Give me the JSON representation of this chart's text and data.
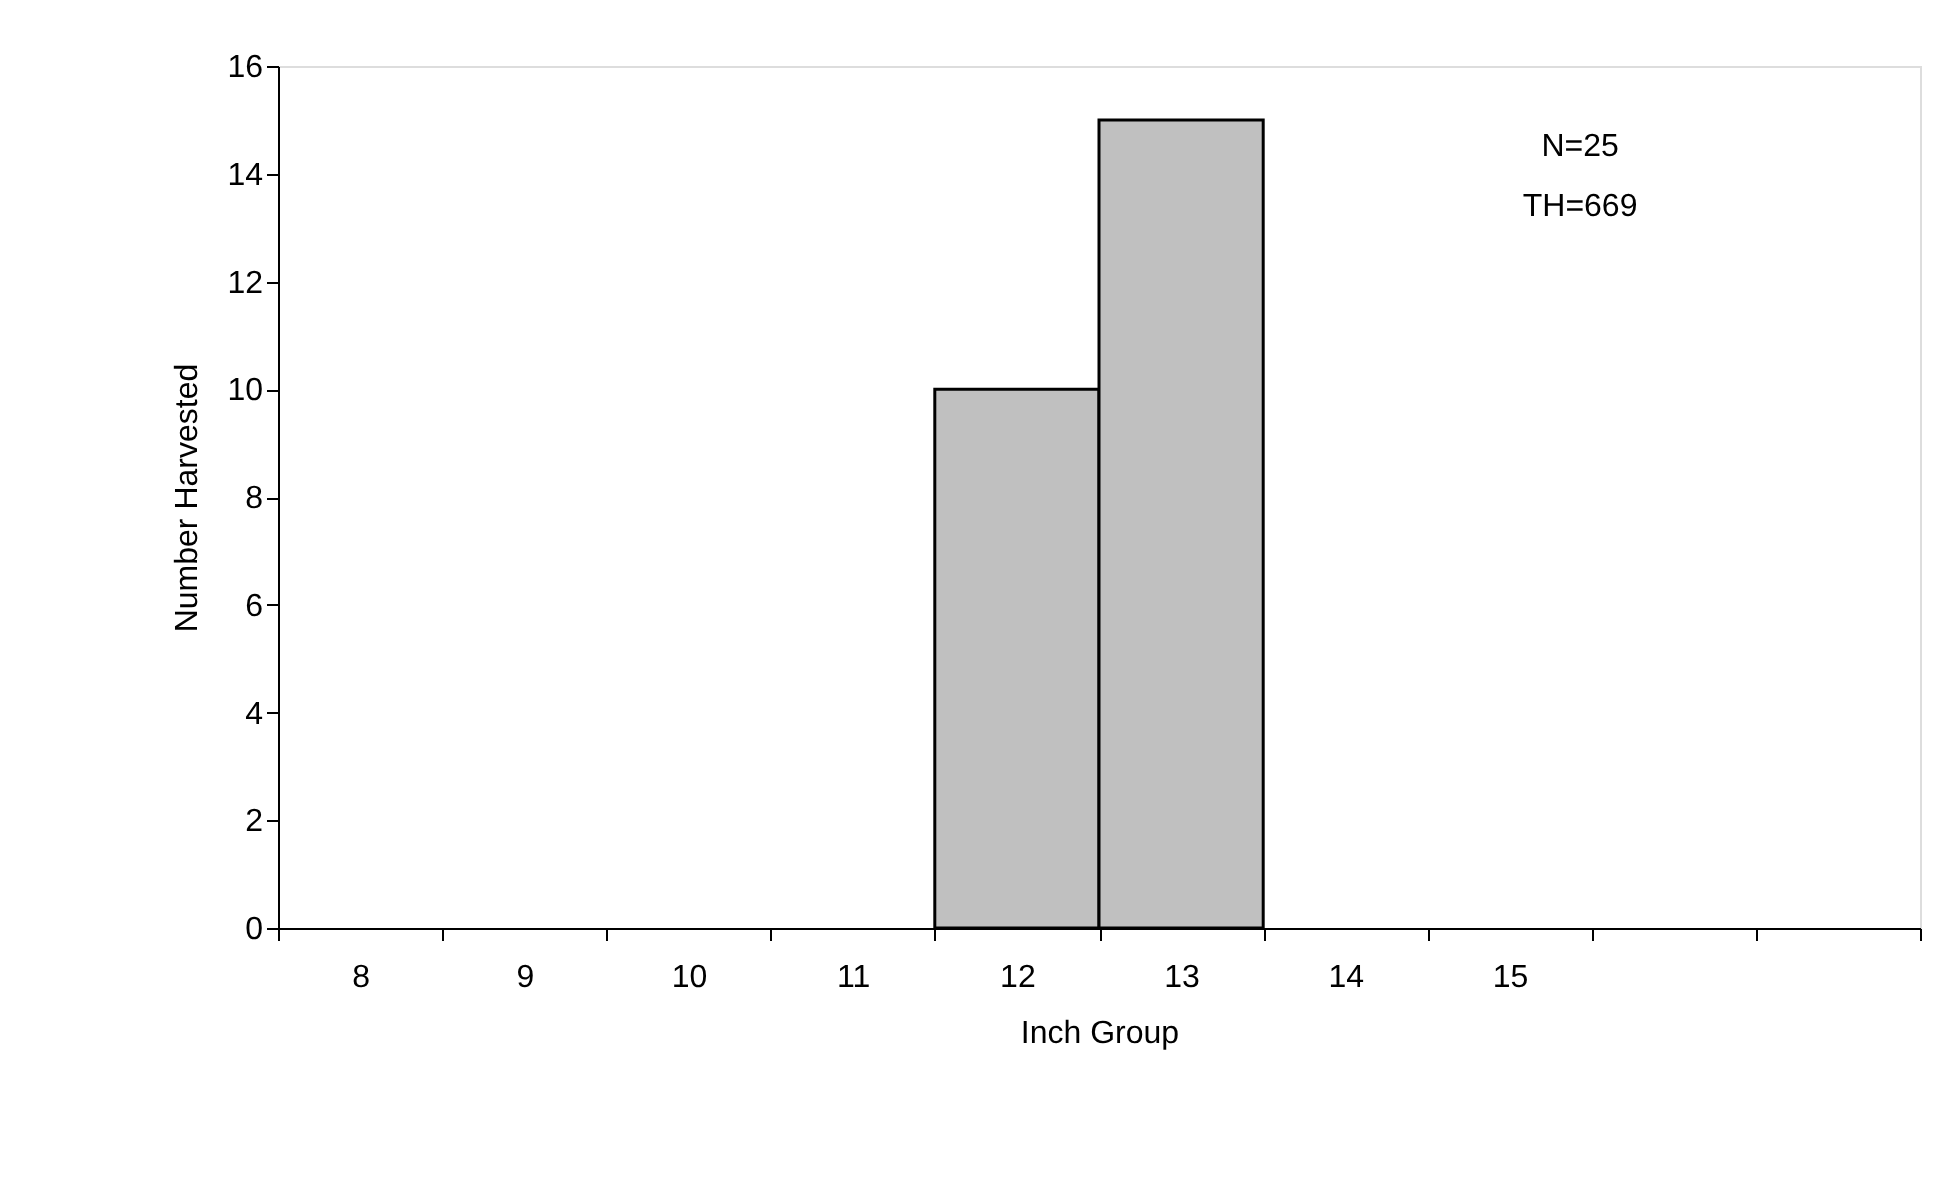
{
  "chart_data": {
    "type": "bar",
    "categories": [
      "8",
      "9",
      "10",
      "11",
      "12",
      "13",
      "14",
      "15",
      null,
      null
    ],
    "values": [
      0,
      0,
      0,
      0,
      10,
      15,
      0,
      0,
      0,
      0
    ],
    "color": "#c0c0c0",
    "xlabel": "Inch Group",
    "ylabel": "Number Harvested",
    "ylim": [
      0,
      16
    ],
    "yticks": [
      0,
      2,
      4,
      6,
      8,
      10,
      12,
      14,
      16
    ],
    "annotations": [
      "N=25",
      "TH=669"
    ],
    "grid": false
  }
}
